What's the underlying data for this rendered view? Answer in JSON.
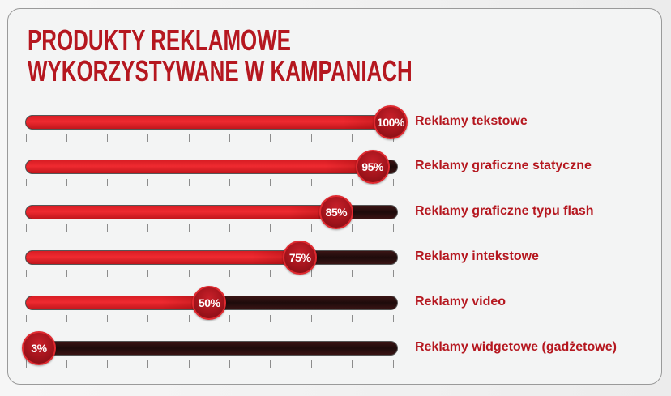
{
  "title": {
    "line1": "PRODUKTY REKLAMOWE",
    "line2": "WYKORZYSTYWANE W KAMPANIACH"
  },
  "colors": {
    "accent": "#b5171f",
    "fill": "#ef2a30",
    "track": "#1e0b0b",
    "background": "#f3f4f4"
  },
  "rows": [
    {
      "label": "Reklamy tekstowe",
      "value": 100,
      "value_label": "100%"
    },
    {
      "label": "Reklamy graficzne statyczne",
      "value": 95,
      "value_label": "95%"
    },
    {
      "label": "Reklamy graficzne typu flash",
      "value": 85,
      "value_label": "85%"
    },
    {
      "label": "Reklamy intekstowe",
      "value": 75,
      "value_label": "75%"
    },
    {
      "label": "Reklamy video",
      "value": 50,
      "value_label": "50%"
    },
    {
      "label": "Reklamy widgetowe (gadżetowe)",
      "value": 3,
      "value_label": "3%"
    }
  ],
  "chart_data": {
    "type": "bar",
    "orientation": "horizontal",
    "title": "PRODUKTY REKLAMOWE WYKORZYSTYWANE W KAMPANIACH",
    "categories": [
      "Reklamy tekstowe",
      "Reklamy graficzne statyczne",
      "Reklamy graficzne typu flash",
      "Reklamy intekstowe",
      "Reklamy video",
      "Reklamy widgetowe (gadżetowe)"
    ],
    "values": [
      100,
      95,
      85,
      75,
      50,
      3
    ],
    "value_labels": [
      "100%",
      "95%",
      "85%",
      "75%",
      "50%",
      "3%"
    ],
    "xlabel": "",
    "ylabel": "",
    "xlim": [
      0,
      100
    ],
    "unit": "%",
    "grid": false,
    "tick_marks_per_bar": 10,
    "legend": null
  }
}
